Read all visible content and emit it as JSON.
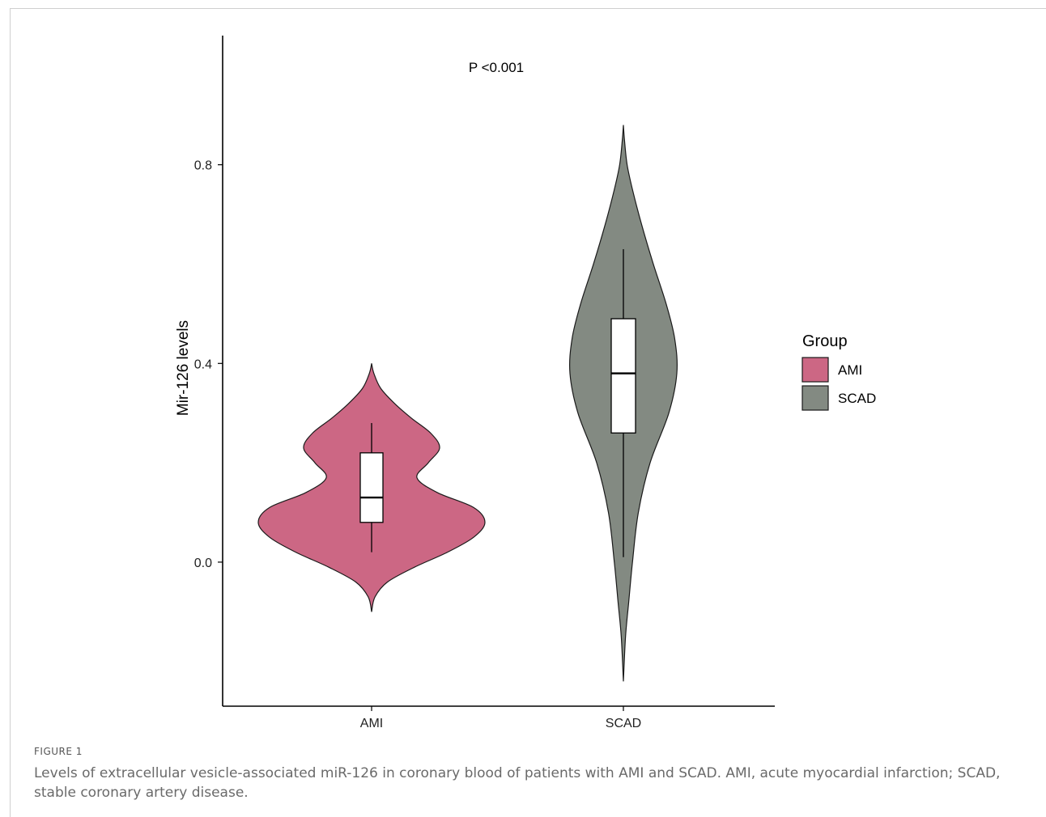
{
  "chart_data": {
    "type": "violin",
    "annotation": "P <0.001",
    "xlabel": "",
    "ylabel": "Mir-126 levels",
    "categories": [
      "AMI",
      "SCAD"
    ],
    "y_ticks": [
      "0.0",
      "0.4",
      "0.8"
    ],
    "ylim": [
      -0.29,
      1.06
    ],
    "legend": {
      "title": "Group",
      "position": "right",
      "entries": [
        "AMI",
        "SCAD"
      ]
    },
    "colors": {
      "AMI": "#cc6784",
      "SCAD": "#838a82"
    },
    "grid": false,
    "series": [
      {
        "name": "AMI",
        "box": {
          "whisker_low": 0.02,
          "q1": 0.08,
          "median": 0.13,
          "q3": 0.22,
          "whisker_high": 0.28
        },
        "density_range": [
          -0.1,
          0.4
        ],
        "density": [
          [
            -0.1,
            0.0
          ],
          [
            -0.07,
            0.03
          ],
          [
            -0.04,
            0.14
          ],
          [
            -0.01,
            0.38
          ],
          [
            0.02,
            0.67
          ],
          [
            0.05,
            0.9
          ],
          [
            0.08,
            1.0
          ],
          [
            0.11,
            0.9
          ],
          [
            0.14,
            0.58
          ],
          [
            0.17,
            0.4
          ],
          [
            0.2,
            0.5
          ],
          [
            0.23,
            0.6
          ],
          [
            0.26,
            0.52
          ],
          [
            0.29,
            0.35
          ],
          [
            0.32,
            0.2
          ],
          [
            0.35,
            0.08
          ],
          [
            0.38,
            0.02
          ],
          [
            0.4,
            0.0
          ]
        ]
      },
      {
        "name": "SCAD",
        "box": {
          "whisker_low": 0.01,
          "q1": 0.26,
          "median": 0.38,
          "q3": 0.49,
          "whisker_high": 0.63
        },
        "density_range": [
          -0.24,
          0.88
        ],
        "density": [
          [
            -0.24,
            0.0
          ],
          [
            -0.15,
            0.04
          ],
          [
            -0.08,
            0.1
          ],
          [
            0.0,
            0.17
          ],
          [
            0.1,
            0.28
          ],
          [
            0.2,
            0.5
          ],
          [
            0.3,
            0.85
          ],
          [
            0.38,
            1.0
          ],
          [
            0.45,
            0.96
          ],
          [
            0.52,
            0.8
          ],
          [
            0.6,
            0.56
          ],
          [
            0.68,
            0.34
          ],
          [
            0.75,
            0.17
          ],
          [
            0.8,
            0.07
          ],
          [
            0.85,
            0.02
          ],
          [
            0.88,
            0.0
          ]
        ]
      }
    ]
  },
  "figure": {
    "label": "FIGURE 1",
    "caption": "Levels of extracellular vesicle-associated miR-126 in coronary blood of patients with AMI and SCAD. AMI, acute myocardial infarction; SCAD, stable coronary artery disease."
  }
}
